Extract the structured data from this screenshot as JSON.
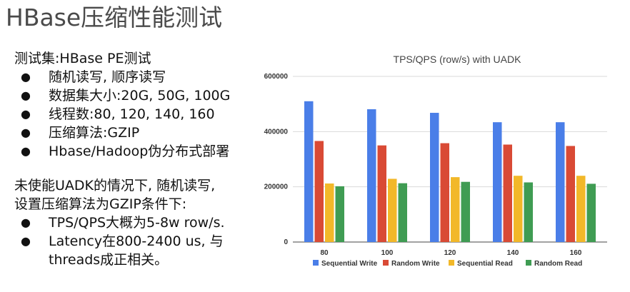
{
  "slide": {
    "title": "HBase压缩性能测试"
  },
  "left": {
    "heading1": "测试集:HBase PE测试",
    "bullets1": [
      "随机读写, 顺序读写",
      "数据集大小:20G, 50G, 100G",
      "线程数:80, 120, 140, 160",
      "压缩算法:GZIP",
      "Hbase/Hadoop伪分布式部署"
    ],
    "heading2_line1": "未使能UADK的情况下, 随机读写,",
    "heading2_line2": "设置压缩算法为GZIP条件下:",
    "bullets2": [
      "TPS/QPS大概为5-8w row/s.",
      "Latency在800-2400 us, 与threads成正相关。"
    ]
  },
  "chart_data": {
    "type": "bar",
    "title": "TPS/QPS (row/s) with UADK",
    "categories": [
      "80",
      "100",
      "120",
      "140",
      "160"
    ],
    "series": [
      {
        "name": "Sequential Write",
        "color": "#4a7ee8",
        "values": [
          510000,
          481000,
          468000,
          434000,
          434000
        ]
      },
      {
        "name": "Random Write",
        "color": "#d94a35",
        "values": [
          366000,
          350000,
          358000,
          353000,
          348000
        ]
      },
      {
        "name": "Sequential Read",
        "color": "#f2b829",
        "values": [
          212000,
          229000,
          235000,
          240000,
          240000
        ]
      },
      {
        "name": "Random Read",
        "color": "#3f9c53",
        "values": [
          202000,
          213000,
          218000,
          216000,
          211000
        ]
      }
    ],
    "ylim": [
      0,
      600000
    ],
    "yticks": [
      "0",
      "200000",
      "400000",
      "600000"
    ],
    "grid": true,
    "legend_position": "bottom"
  }
}
